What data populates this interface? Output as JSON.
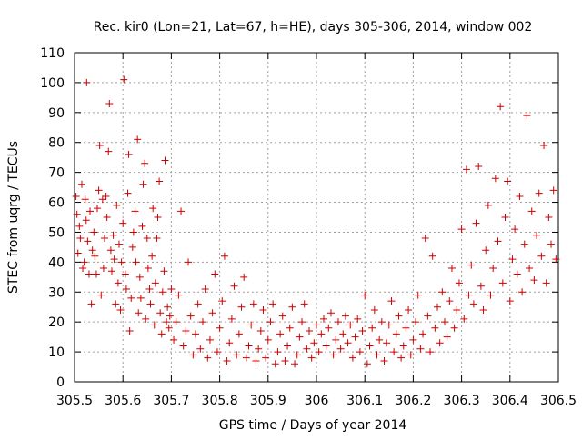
{
  "chart_data": {
    "type": "scatter",
    "title": "Rec. kir0 (Lon=21, Lat=67, h=HE), days 305-306, 2014, window 002",
    "xlabel": "GPS time / Days of year 2014",
    "ylabel": "STEC from uqrg / TECUs",
    "xlim": [
      305.5,
      306.5
    ],
    "ylim": [
      0,
      110
    ],
    "xticks": [
      "305.5",
      "305.6",
      "305.7",
      "305.8",
      "305.9",
      "306",
      "306.1",
      "306.2",
      "306.3",
      "306.4",
      "306.5"
    ],
    "yticks": [
      "0",
      "10",
      "20",
      "30",
      "40",
      "50",
      "60",
      "70",
      "80",
      "90",
      "100",
      "110"
    ],
    "grid": true,
    "marker": "plus",
    "color": "#cc0000",
    "series": [
      {
        "points": [
          [
            305.503,
            62
          ],
          [
            305.505,
            56
          ],
          [
            305.507,
            43
          ],
          [
            305.51,
            52
          ],
          [
            305.512,
            48
          ],
          [
            305.515,
            66
          ],
          [
            305.517,
            38
          ],
          [
            305.52,
            40
          ],
          [
            305.522,
            61
          ],
          [
            305.524,
            54
          ],
          [
            305.525,
            100
          ],
          [
            305.527,
            47
          ],
          [
            305.53,
            36
          ],
          [
            305.532,
            57
          ],
          [
            305.535,
            26
          ],
          [
            305.537,
            44
          ],
          [
            305.54,
            50
          ],
          [
            305.542,
            42
          ],
          [
            305.545,
            36
          ],
          [
            305.547,
            58
          ],
          [
            305.55,
            64
          ],
          [
            305.552,
            79
          ],
          [
            305.555,
            29
          ],
          [
            305.558,
            61
          ],
          [
            305.56,
            38
          ],
          [
            305.562,
            48
          ],
          [
            305.565,
            62
          ],
          [
            305.567,
            55
          ],
          [
            305.57,
            77
          ],
          [
            305.572,
            93
          ],
          [
            305.575,
            44
          ],
          [
            305.577,
            37
          ],
          [
            305.58,
            49
          ],
          [
            305.582,
            41
          ],
          [
            305.585,
            26
          ],
          [
            305.587,
            59
          ],
          [
            305.59,
            33
          ],
          [
            305.592,
            46
          ],
          [
            305.595,
            24
          ],
          [
            305.597,
            40
          ],
          [
            305.6,
            53
          ],
          [
            305.602,
            101
          ],
          [
            305.605,
            36
          ],
          [
            305.607,
            31
          ],
          [
            305.61,
            63
          ],
          [
            305.612,
            76
          ],
          [
            305.614,
            17
          ],
          [
            305.617,
            28
          ],
          [
            305.62,
            45
          ],
          [
            305.622,
            50
          ],
          [
            305.625,
            57
          ],
          [
            305.627,
            40
          ],
          [
            305.63,
            81
          ],
          [
            305.632,
            23
          ],
          [
            305.635,
            35
          ],
          [
            305.637,
            28
          ],
          [
            305.64,
            52
          ],
          [
            305.642,
            66
          ],
          [
            305.645,
            73
          ],
          [
            305.647,
            21
          ],
          [
            305.65,
            48
          ],
          [
            305.652,
            38
          ],
          [
            305.655,
            31
          ],
          [
            305.657,
            26
          ],
          [
            305.66,
            42
          ],
          [
            305.662,
            58
          ],
          [
            305.665,
            19
          ],
          [
            305.667,
            33
          ],
          [
            305.67,
            48
          ],
          [
            305.672,
            55
          ],
          [
            305.675,
            67
          ],
          [
            305.677,
            23
          ],
          [
            305.68,
            16
          ],
          [
            305.682,
            30
          ],
          [
            305.685,
            37
          ],
          [
            305.687,
            74
          ],
          [
            305.69,
            20
          ],
          [
            305.692,
            25
          ],
          [
            305.695,
            18
          ],
          [
            305.697,
            22
          ],
          [
            305.7,
            31
          ],
          [
            305.705,
            14
          ],
          [
            305.71,
            20
          ],
          [
            305.715,
            29
          ],
          [
            305.72,
            57
          ],
          [
            305.725,
            12
          ],
          [
            305.73,
            17
          ],
          [
            305.735,
            40
          ],
          [
            305.74,
            22
          ],
          [
            305.745,
            9
          ],
          [
            305.75,
            16
          ],
          [
            305.755,
            26
          ],
          [
            305.76,
            11
          ],
          [
            305.765,
            20
          ],
          [
            305.77,
            31
          ],
          [
            305.775,
            8
          ],
          [
            305.78,
            14
          ],
          [
            305.785,
            23
          ],
          [
            305.79,
            36
          ],
          [
            305.795,
            10
          ],
          [
            305.8,
            18
          ],
          [
            305.805,
            27
          ],
          [
            305.81,
            42
          ],
          [
            305.815,
            7
          ],
          [
            305.82,
            13
          ],
          [
            305.825,
            21
          ],
          [
            305.83,
            32
          ],
          [
            305.835,
            9
          ],
          [
            305.84,
            16
          ],
          [
            305.845,
            25
          ],
          [
            305.85,
            35
          ],
          [
            305.855,
            8
          ],
          [
            305.86,
            12
          ],
          [
            305.865,
            19
          ],
          [
            305.87,
            26
          ],
          [
            305.875,
            7
          ],
          [
            305.88,
            11
          ],
          [
            305.885,
            17
          ],
          [
            305.89,
            24
          ],
          [
            305.895,
            8
          ],
          [
            305.9,
            14
          ],
          [
            305.905,
            20
          ],
          [
            305.91,
            26
          ],
          [
            305.915,
            6
          ],
          [
            305.92,
            10
          ],
          [
            305.925,
            16
          ],
          [
            305.93,
            22
          ],
          [
            305.935,
            7
          ],
          [
            305.94,
            12
          ],
          [
            305.945,
            18
          ],
          [
            305.95,
            25
          ],
          [
            305.955,
            6
          ],
          [
            305.96,
            9
          ],
          [
            305.965,
            15
          ],
          [
            305.97,
            20
          ],
          [
            305.975,
            26
          ],
          [
            305.98,
            11
          ],
          [
            305.985,
            17
          ],
          [
            305.99,
            8
          ],
          [
            305.995,
            13
          ],
          [
            306.0,
            19
          ],
          [
            306.005,
            10
          ],
          [
            306.01,
            16
          ],
          [
            306.015,
            21
          ],
          [
            306.02,
            12
          ],
          [
            306.025,
            18
          ],
          [
            306.03,
            23
          ],
          [
            306.035,
            9
          ],
          [
            306.04,
            14
          ],
          [
            306.045,
            20
          ],
          [
            306.05,
            11
          ],
          [
            306.055,
            16
          ],
          [
            306.06,
            22
          ],
          [
            306.065,
            13
          ],
          [
            306.07,
            19
          ],
          [
            306.075,
            8
          ],
          [
            306.08,
            15
          ],
          [
            306.085,
            21
          ],
          [
            306.09,
            10
          ],
          [
            306.095,
            17
          ],
          [
            306.1,
            29
          ],
          [
            306.105,
            6
          ],
          [
            306.11,
            12
          ],
          [
            306.115,
            18
          ],
          [
            306.12,
            24
          ],
          [
            306.125,
            9
          ],
          [
            306.13,
            14
          ],
          [
            306.135,
            20
          ],
          [
            306.14,
            7
          ],
          [
            306.145,
            13
          ],
          [
            306.15,
            19
          ],
          [
            306.155,
            27
          ],
          [
            306.16,
            10
          ],
          [
            306.165,
            16
          ],
          [
            306.17,
            22
          ],
          [
            306.175,
            8
          ],
          [
            306.18,
            12
          ],
          [
            306.185,
            18
          ],
          [
            306.19,
            24
          ],
          [
            306.195,
            9
          ],
          [
            306.2,
            14
          ],
          [
            306.205,
            20
          ],
          [
            306.21,
            29
          ],
          [
            306.215,
            11
          ],
          [
            306.22,
            16
          ],
          [
            306.225,
            48
          ],
          [
            306.23,
            22
          ],
          [
            306.235,
            10
          ],
          [
            306.24,
            42
          ],
          [
            306.245,
            18
          ],
          [
            306.25,
            25
          ],
          [
            306.255,
            13
          ],
          [
            306.26,
            30
          ],
          [
            306.265,
            20
          ],
          [
            306.27,
            15
          ],
          [
            306.275,
            27
          ],
          [
            306.28,
            38
          ],
          [
            306.285,
            18
          ],
          [
            306.29,
            24
          ],
          [
            306.295,
            33
          ],
          [
            306.3,
            51
          ],
          [
            306.305,
            21
          ],
          [
            306.31,
            71
          ],
          [
            306.315,
            29
          ],
          [
            306.32,
            39
          ],
          [
            306.325,
            26
          ],
          [
            306.33,
            53
          ],
          [
            306.335,
            72
          ],
          [
            306.34,
            32
          ],
          [
            306.345,
            24
          ],
          [
            306.35,
            44
          ],
          [
            306.355,
            59
          ],
          [
            306.36,
            29
          ],
          [
            306.365,
            38
          ],
          [
            306.37,
            68
          ],
          [
            306.375,
            47
          ],
          [
            306.38,
            92
          ],
          [
            306.385,
            33
          ],
          [
            306.39,
            55
          ],
          [
            306.395,
            67
          ],
          [
            306.4,
            27
          ],
          [
            306.405,
            41
          ],
          [
            306.41,
            51
          ],
          [
            306.415,
            36
          ],
          [
            306.42,
            62
          ],
          [
            306.425,
            30
          ],
          [
            306.43,
            46
          ],
          [
            306.435,
            89
          ],
          [
            306.44,
            38
          ],
          [
            306.445,
            57
          ],
          [
            306.45,
            34
          ],
          [
            306.455,
            49
          ],
          [
            306.46,
            63
          ],
          [
            306.465,
            42
          ],
          [
            306.47,
            79
          ],
          [
            306.475,
            33
          ],
          [
            306.48,
            55
          ],
          [
            306.485,
            46
          ],
          [
            306.49,
            64
          ],
          [
            306.495,
            41
          ]
        ]
      }
    ]
  }
}
